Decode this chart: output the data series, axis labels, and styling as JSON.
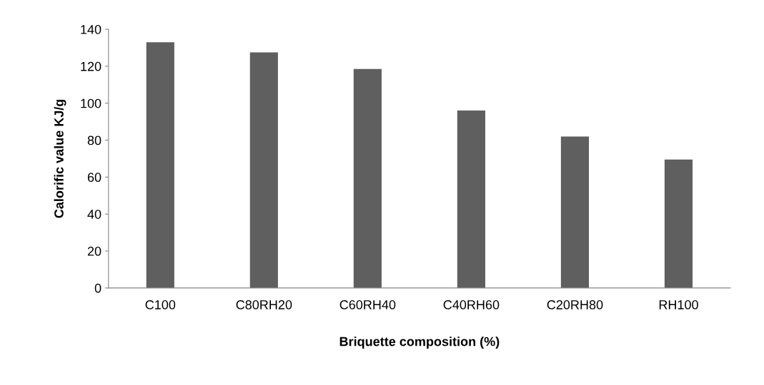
{
  "chart_data": {
    "type": "bar",
    "xlabel": "Briquette composition (%)",
    "ylabel": "Calorific value KJ/g",
    "categories": [
      "C100",
      "C80RH20",
      "C60RH40",
      "C40RH60",
      "C20RH80",
      "RH100"
    ],
    "values": [
      133,
      127.5,
      118.5,
      96,
      82,
      69.5
    ],
    "color": "#5f5f5f",
    "ylim": [
      0,
      140
    ],
    "yticks": [
      0,
      20,
      40,
      60,
      80,
      100,
      120,
      140
    ],
    "grid": false,
    "legend": false
  }
}
